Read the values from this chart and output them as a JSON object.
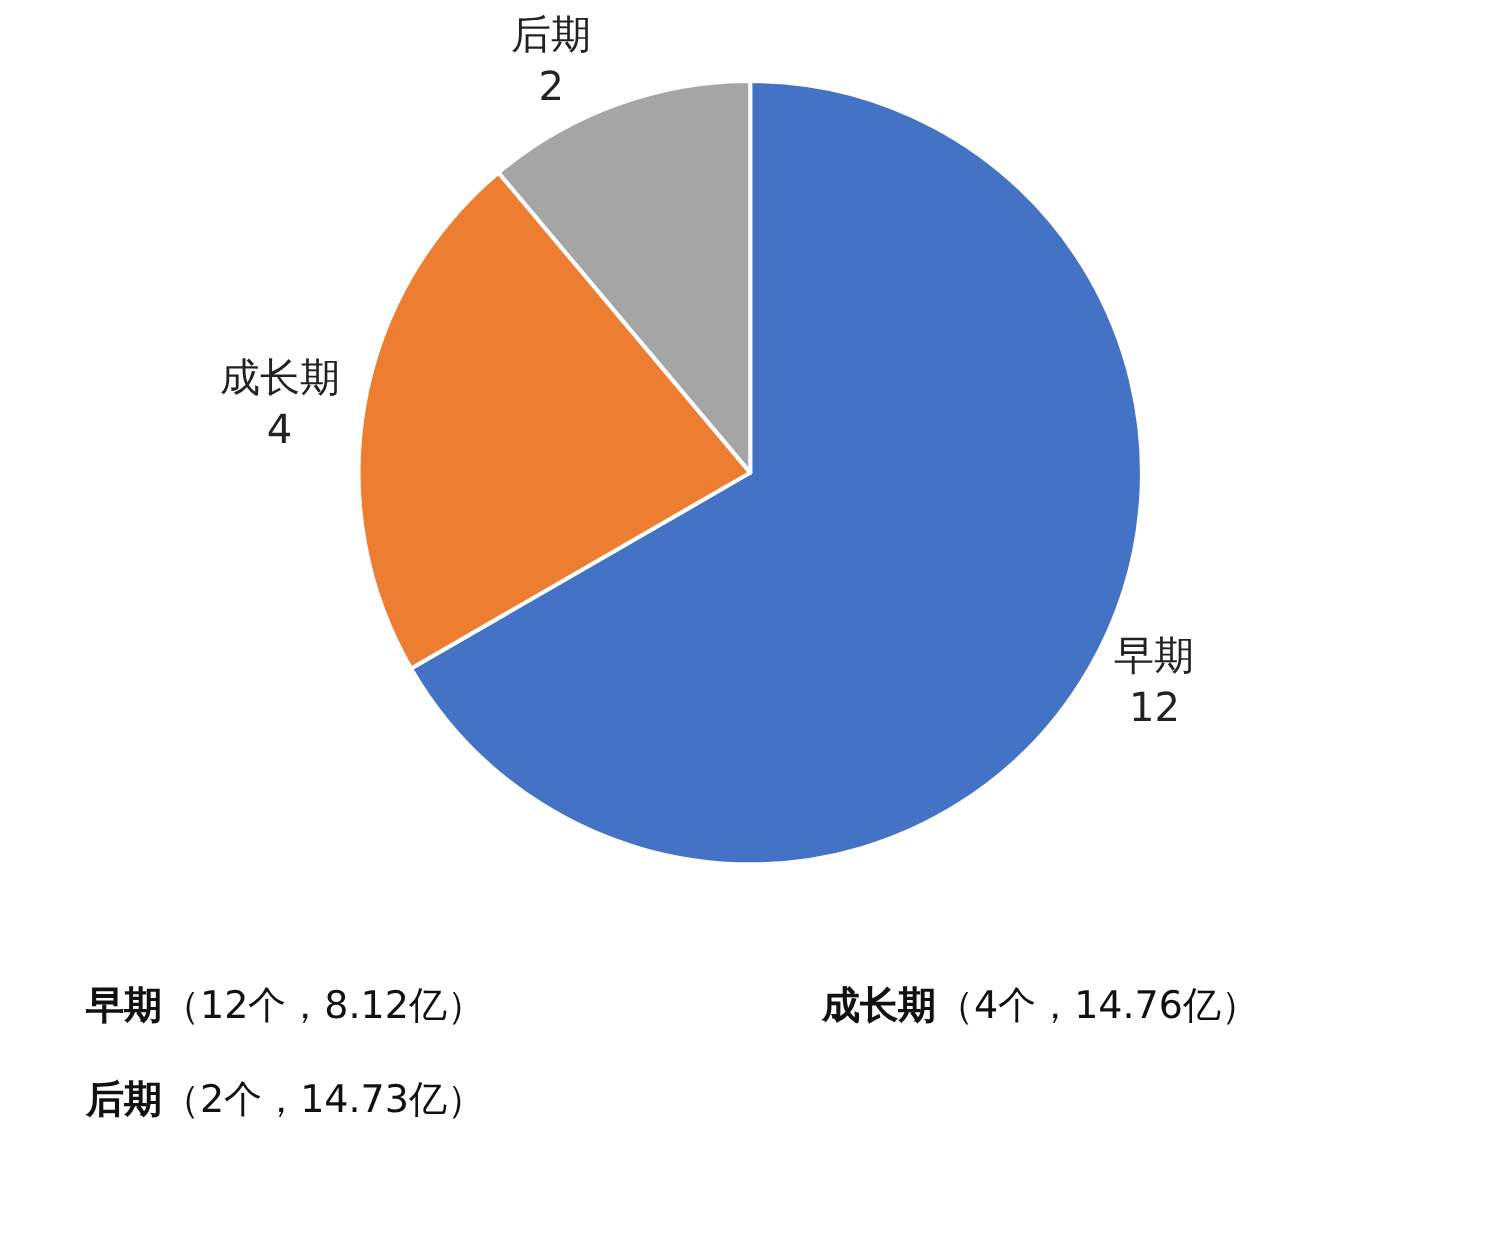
{
  "chart_data": {
    "type": "pie",
    "categories": [
      "早期",
      "成长期",
      "后期"
    ],
    "values": [
      12,
      4,
      2
    ],
    "colors": [
      "#4472c4",
      "#ed7d31",
      "#a5a5a5"
    ],
    "data_labels": true,
    "legend": false,
    "annotations": [
      "早期（12个，8.12亿）",
      "成长期（4个，14.76亿）",
      "后期（2个，14.73亿）"
    ]
  }
}
